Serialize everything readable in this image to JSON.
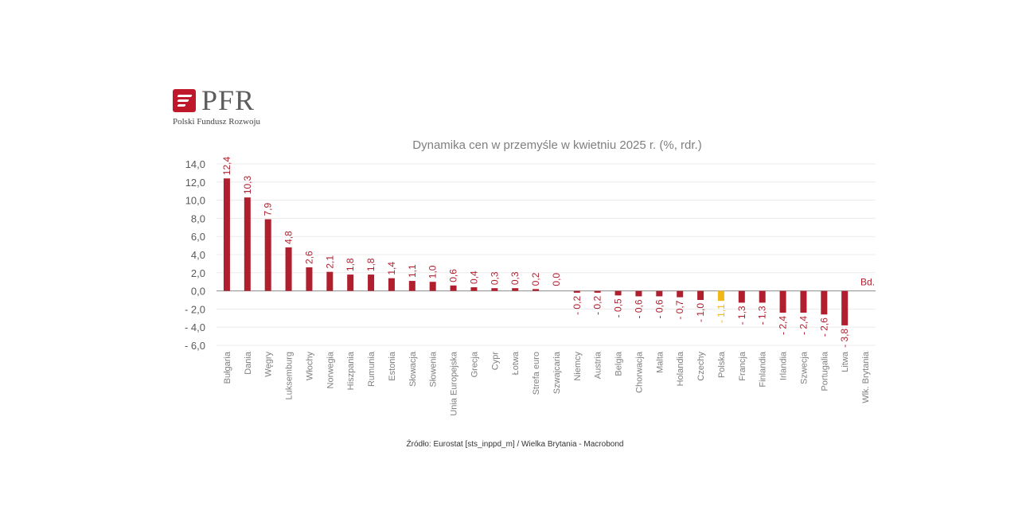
{
  "logo": {
    "name": "PFR",
    "subtitle": "Polski Fundusz Rozwoju"
  },
  "source": "Źródło: Eurostat [sts_inppd_m] / Wielka Brytania - Macrobond",
  "colors": {
    "bar": "#b01f2e",
    "highlight": "#f2b818",
    "axis_text": "#595959",
    "grid": "#ececec"
  },
  "chart_data": {
    "type": "bar",
    "title": "Dynamika cen w przemyśle w kwietniu 2025 r. (%, rdr.)",
    "xlabel": "",
    "ylabel": "",
    "ylim": [
      -6,
      14
    ],
    "yticks": [
      14,
      12,
      10,
      8,
      6,
      4,
      2,
      0,
      -2,
      -4,
      -6
    ],
    "ytick_labels": [
      "14,0",
      "12,0",
      "10,0",
      "8,0",
      "6,0",
      "4,0",
      "2,0",
      "0,0",
      "- 2,0",
      "- 4,0",
      "- 6,0"
    ],
    "grid": true,
    "highlight_category": "Polska",
    "categories": [
      "Bułgaria",
      "Dania",
      "Węgry",
      "Luksemburg",
      "Włochy",
      "Norwegia",
      "Hiszpania",
      "Rumunia",
      "Estonia",
      "Słowacja",
      "Słowenia",
      "Unia Europejska",
      "Grecja",
      "Cypr",
      "Łotwa",
      "Strefa euro",
      "Szwajcaria",
      "Niemcy",
      "Austria",
      "Belgia",
      "Chorwacja",
      "Malta",
      "Holandia",
      "Czechy",
      "Polska",
      "Francja",
      "Finlandia",
      "Irlandia",
      "Szwecja",
      "Portugalia",
      "Litwa",
      "Wlk. Brytania"
    ],
    "values": [
      12.4,
      10.3,
      7.9,
      4.8,
      2.6,
      2.1,
      1.8,
      1.8,
      1.4,
      1.1,
      1.0,
      0.6,
      0.4,
      0.3,
      0.3,
      0.2,
      0.0,
      -0.2,
      -0.2,
      -0.5,
      -0.6,
      -0.6,
      -0.7,
      -1.0,
      -1.1,
      -1.3,
      -1.3,
      -2.4,
      -2.4,
      -2.6,
      -3.8,
      null
    ],
    "data_labels": [
      "12,4",
      "10,3",
      "7,9",
      "4,8",
      "2,6",
      "2,1",
      "1,8",
      "1,8",
      "1,4",
      "1,1",
      "1,0",
      "0,6",
      "0,4",
      "0,3",
      "0,3",
      "0,2",
      "0,0",
      "- 0,2",
      "- 0,2",
      "- 0,5",
      "- 0,6",
      "- 0,6",
      "- 0,7",
      "- 1,0",
      "- 1,1",
      "- 1,3",
      "- 1,3",
      "- 2,4",
      "- 2,4",
      "- 2,6",
      "- 3,8",
      "Bd."
    ]
  }
}
